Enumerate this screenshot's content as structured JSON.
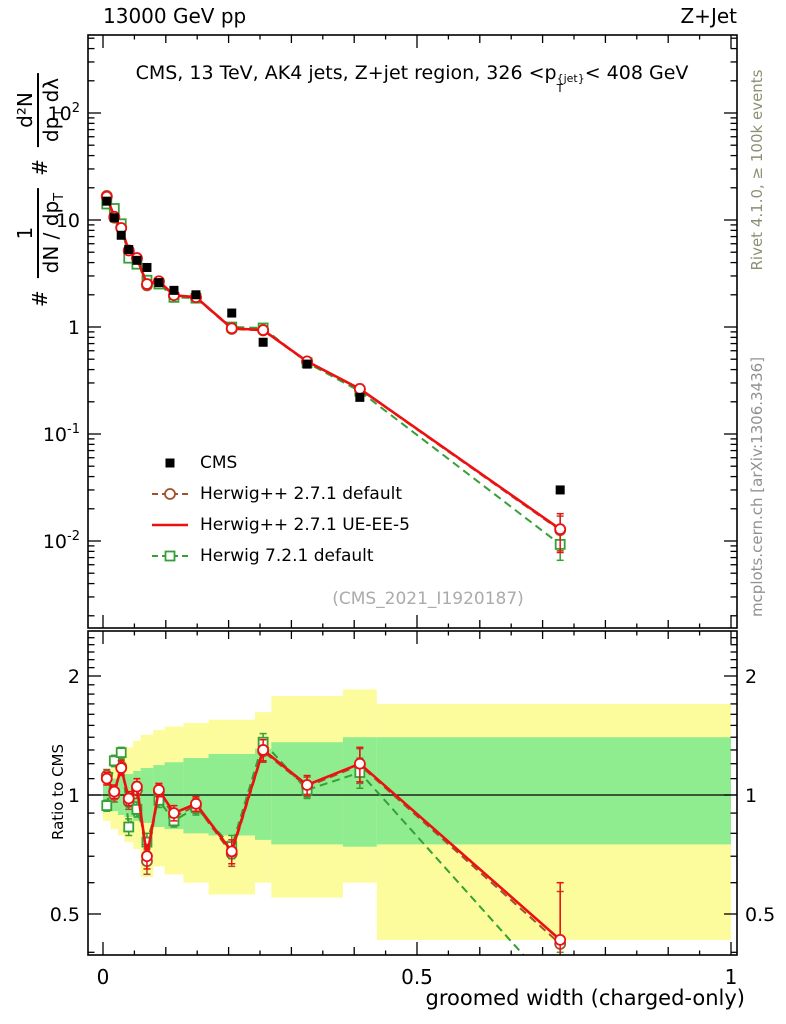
{
  "header": {
    "left": "13000 GeV pp",
    "right": "Z+Jet"
  },
  "panel_title": {
    "pre": "CMS, 13 TeV, AK4 jets, Z+jet region, 326 <p",
    "sup": "{jet}",
    "sub": "T",
    "post": "< 408 GeV"
  },
  "watermark": "(CMS_2021_I1920187)",
  "side_notes": {
    "top": "Rivet 4.1.0, ≥ 100k events",
    "bottom": "mcplots.cern.ch [arXiv:1306.3436]"
  },
  "ylabel": {
    "hash1": "#",
    "num1": "1",
    "den1_pre": "dN / dp",
    "den1_sub": "T",
    "hash2": "#",
    "num2": "d²N",
    "den2_pre": "dp",
    "den2_sub": "T",
    "den2_post": " dλ"
  },
  "ratio_label": "Ratio to CMS",
  "xlabel": "groomed width (charged-only)",
  "chart_data": {
    "type": "line",
    "title": "CMS, 13 TeV, AK4 jets, Z+jet region, 326 < pT_jet < 408 GeV",
    "xlabel": "groomed width (charged-only)",
    "ylabel_top": "1/(dN/dpT) d2N/(dpT dlambda)",
    "ylabel_bottom": "Ratio to CMS",
    "x": [
      0.006,
      0.018,
      0.029,
      0.041,
      0.054,
      0.07,
      0.089,
      0.113,
      0.148,
      0.205,
      0.255,
      0.325,
      0.409,
      0.728
    ],
    "bin_edges": [
      0,
      0.012,
      0.024,
      0.034,
      0.048,
      0.06,
      0.08,
      0.098,
      0.128,
      0.168,
      0.242,
      0.268,
      0.382,
      0.436,
      1.0
    ],
    "cms": {
      "label": "CMS",
      "color": "#000000",
      "marker": "filled-square",
      "values": [
        15,
        10.5,
        7.2,
        5.3,
        4.2,
        3.6,
        2.6,
        2.2,
        2.0,
        1.35,
        0.72,
        0.45,
        0.22,
        0.03
      ]
    },
    "series": [
      {
        "name": "Herwig++ 2.7.1 default",
        "color": "#a0522d",
        "style": "dashed",
        "marker": "circle",
        "legend_marker": true,
        "ratio": [
          1.12,
          1.0,
          1.18,
          0.96,
          1.03,
          0.68,
          1.02,
          0.88,
          0.94,
          0.71,
          1.29,
          1.05,
          1.19,
          0.42
        ],
        "ratio_err": [
          0.04,
          0.04,
          0.05,
          0.04,
          0.05,
          0.05,
          0.04,
          0.04,
          0.04,
          0.05,
          0.08,
          0.06,
          0.12,
          0.15
        ]
      },
      {
        "name": "Herwig++ 2.7.1 UE-EE-5",
        "color": "#ee1010",
        "style": "solid",
        "marker": "circle",
        "legend_marker": false,
        "ratio": [
          1.1,
          1.02,
          1.17,
          0.98,
          1.05,
          0.7,
          1.03,
          0.9,
          0.95,
          0.72,
          1.3,
          1.06,
          1.2,
          0.43
        ],
        "ratio_err": [
          0.04,
          0.04,
          0.05,
          0.04,
          0.05,
          0.05,
          0.04,
          0.04,
          0.04,
          0.05,
          0.08,
          0.06,
          0.12,
          0.17
        ]
      },
      {
        "name": "Herwig 7.2.1 default",
        "color": "#35a035",
        "style": "dashed",
        "marker": "square",
        "legend_marker": true,
        "ratio": [
          0.94,
          1.22,
          1.28,
          0.83,
          0.92,
          0.76,
          0.97,
          0.86,
          0.93,
          0.74,
          1.36,
          1.03,
          1.14,
          0.31
        ],
        "ratio_err": [
          0.03,
          0.04,
          0.04,
          0.04,
          0.04,
          0.04,
          0.04,
          0.03,
          0.04,
          0.05,
          0.07,
          0.05,
          0.1,
          0.09
        ]
      }
    ],
    "bands": {
      "outer_color": "#fcfc9c",
      "inner_color": "#8fec8f",
      "outer": [
        [
          0.86,
          1.16
        ],
        [
          0.82,
          1.22
        ],
        [
          0.79,
          1.27
        ],
        [
          0.76,
          1.32
        ],
        [
          0.73,
          1.37
        ],
        [
          0.62,
          1.42
        ],
        [
          0.66,
          1.46
        ],
        [
          0.63,
          1.49
        ],
        [
          0.6,
          1.52
        ],
        [
          0.56,
          1.55
        ],
        [
          0.6,
          1.62
        ],
        [
          0.55,
          1.78
        ],
        [
          0.6,
          1.85
        ],
        [
          0.43,
          1.7
        ]
      ],
      "inner": [
        [
          0.93,
          1.07
        ],
        [
          0.91,
          1.1
        ],
        [
          0.89,
          1.12
        ],
        [
          0.88,
          1.13
        ],
        [
          0.86,
          1.15
        ],
        [
          0.85,
          1.17
        ],
        [
          0.83,
          1.19
        ],
        [
          0.82,
          1.21
        ],
        [
          0.8,
          1.24
        ],
        [
          0.79,
          1.27
        ],
        [
          0.77,
          1.31
        ],
        [
          0.75,
          1.36
        ],
        [
          0.74,
          1.4
        ],
        [
          0.75,
          1.4
        ]
      ]
    },
    "axes": {
      "x": {
        "min": -0.024,
        "max": 1.01,
        "tick_defs": [
          {
            "v": 0,
            "t": "0"
          },
          {
            "v": 0.5,
            "t": "0.5"
          },
          {
            "v": 1,
            "t": "1"
          }
        ]
      },
      "y_top": {
        "scale": "log",
        "min": 0.0016,
        "max": 530,
        "tick_defs": [
          {
            "v": 100,
            "base": "10",
            "exp": "2"
          },
          {
            "v": 10,
            "base": "10",
            "exp": ""
          },
          {
            "v": 1,
            "base": "1",
            "exp": ""
          },
          {
            "v": 0.1,
            "base": "10",
            "exp": "-1"
          },
          {
            "v": 0.01,
            "base": "10",
            "exp": "-2"
          }
        ]
      },
      "y_ratio": {
        "scale": "log",
        "min": 0.394,
        "max": 2.6,
        "tick_defs": [
          {
            "v": 2,
            "t": "2"
          },
          {
            "v": 1,
            "t": "1"
          },
          {
            "v": 0.5,
            "t": "0.5"
          }
        ]
      }
    }
  }
}
